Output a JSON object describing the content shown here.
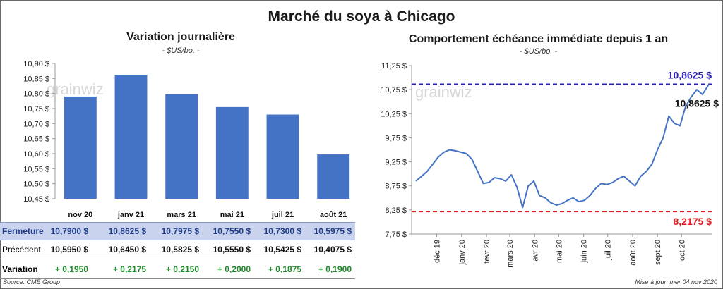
{
  "title": "Marché du soya à Chicago",
  "source": "Source: CME Group",
  "updated": "Mise à jour: mer 04 nov 2020",
  "watermark": "grainwiz",
  "colors": {
    "bar": "#4472c4",
    "line": "#4472c4",
    "high": "#2a1fb5",
    "low": "#e21b23",
    "positive": "#1d8a2a"
  },
  "chart_data": [
    {
      "type": "bar",
      "title": "Variation journalière",
      "subtitle": "- $US/bo. -",
      "categories": [
        "nov 20",
        "janv 21",
        "mars 21",
        "mai 21",
        "juil 21",
        "août 21"
      ],
      "values": [
        10.79,
        10.8625,
        10.7975,
        10.755,
        10.73,
        10.5975
      ],
      "ylim": [
        10.45,
        10.9
      ],
      "yticks": [
        "10,45 $",
        "10,50 $",
        "10,55 $",
        "10,60 $",
        "10,65 $",
        "10,70 $",
        "10,75 $",
        "10,80 $",
        "10,85 $",
        "10,90 $"
      ],
      "grid": false
    },
    {
      "type": "line",
      "title": "Comportement échéance immédiate depuis 1 an",
      "subtitle": "- $US/bo. -",
      "ylim": [
        7.75,
        11.25
      ],
      "yticks": [
        "7,75 $",
        "8,25 $",
        "8,75 $",
        "9,25 $",
        "9,75 $",
        "10,25 $",
        "10,75 $",
        "11,25 $"
      ],
      "xticks": [
        "déc 19",
        "janv 20",
        "févr 20",
        "mars 20",
        "avr 20",
        "mai 20",
        "juin 20",
        "juil 20",
        "août 20",
        "sept 20",
        "oct 20"
      ],
      "x": [
        "2019-11-05",
        "2019-11-12",
        "2019-11-19",
        "2019-11-26",
        "2019-12-03",
        "2019-12-10",
        "2019-12-17",
        "2019-12-24",
        "2019-12-31",
        "2020-01-07",
        "2020-01-14",
        "2020-01-21",
        "2020-01-28",
        "2020-02-04",
        "2020-02-11",
        "2020-02-18",
        "2020-02-25",
        "2020-03-03",
        "2020-03-10",
        "2020-03-17",
        "2020-03-24",
        "2020-03-31",
        "2020-04-07",
        "2020-04-14",
        "2020-04-21",
        "2020-04-28",
        "2020-05-05",
        "2020-05-12",
        "2020-05-19",
        "2020-05-26",
        "2020-06-02",
        "2020-06-09",
        "2020-06-16",
        "2020-06-23",
        "2020-06-30",
        "2020-07-07",
        "2020-07-14",
        "2020-07-21",
        "2020-07-28",
        "2020-08-04",
        "2020-08-11",
        "2020-08-18",
        "2020-08-25",
        "2020-09-01",
        "2020-09-08",
        "2020-09-15",
        "2020-09-22",
        "2020-09-29",
        "2020-10-06",
        "2020-10-13",
        "2020-10-20",
        "2020-10-27",
        "2020-11-04"
      ],
      "series": [
        {
          "values": [
            8.85,
            8.95,
            9.05,
            9.2,
            9.35,
            9.45,
            9.5,
            9.48,
            9.45,
            9.42,
            9.3,
            9.05,
            8.8,
            8.82,
            8.92,
            8.9,
            8.85,
            8.98,
            8.72,
            8.3,
            8.75,
            8.85,
            8.55,
            8.5,
            8.4,
            8.35,
            8.38,
            8.45,
            8.5,
            8.42,
            8.45,
            8.55,
            8.7,
            8.8,
            8.78,
            8.82,
            8.9,
            8.95,
            8.85,
            8.75,
            8.95,
            9.05,
            9.2,
            9.5,
            9.75,
            10.2,
            10.05,
            10.0,
            10.4,
            10.6,
            10.75,
            10.65,
            10.8625
          ]
        }
      ],
      "reference_lines": [
        {
          "label": "10,8625 $",
          "value": 10.8625
        },
        {
          "label": "8,2175 $",
          "value": 8.2175
        }
      ],
      "last_label": "10,8625 $",
      "grid": false
    }
  ],
  "table": {
    "rows": [
      {
        "label": "Fermeture",
        "cells": [
          "10,7900  $",
          "10,8625  $",
          "10,7975  $",
          "10,7550  $",
          "10,7300  $",
          "10,5975  $"
        ]
      },
      {
        "label": "Précédent",
        "cells": [
          "10,5950  $",
          "10,6450  $",
          "10,5825  $",
          "10,5550  $",
          "10,5425  $",
          "10,4075  $"
        ]
      },
      {
        "label": "Variation",
        "cells": [
          "+ 0,1950",
          "+ 0,2175",
          "+ 0,2150",
          "+ 0,2000",
          "+ 0,1875",
          "+ 0,1900"
        ]
      }
    ]
  }
}
